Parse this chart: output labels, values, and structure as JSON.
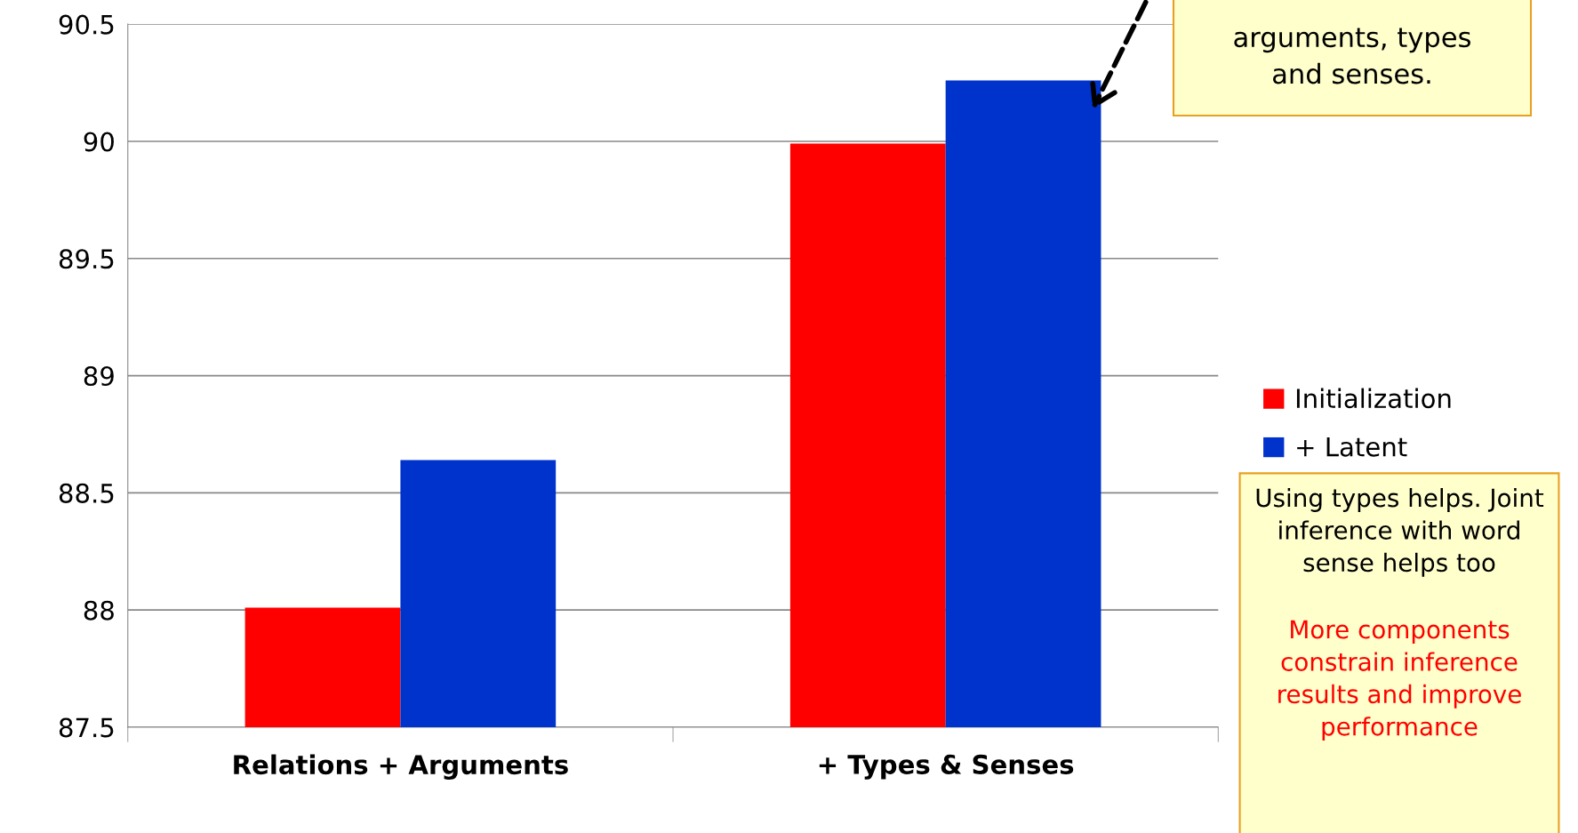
{
  "chart_data": {
    "type": "bar",
    "categories": [
      "Relations + Arguments",
      "+ Types & Senses"
    ],
    "series": [
      {
        "name": "Initialization",
        "color": "#ff0000",
        "values": [
          88.01,
          89.99
        ]
      },
      {
        "name": "+ Latent",
        "color": "#0033cc",
        "values": [
          88.64,
          90.26
        ]
      }
    ],
    "ylim": [
      87.5,
      90.5
    ],
    "yticks": [
      87.5,
      88,
      88.5,
      89,
      89.5,
      90,
      90.5
    ],
    "grid": "y",
    "legend": "right",
    "annotations": [
      "arguments, types\nand senses.",
      "Using types helps. Joint\ninference with word\nsense helps too",
      "More components\nconstrain inference\nresults and improve\nperformance"
    ]
  }
}
